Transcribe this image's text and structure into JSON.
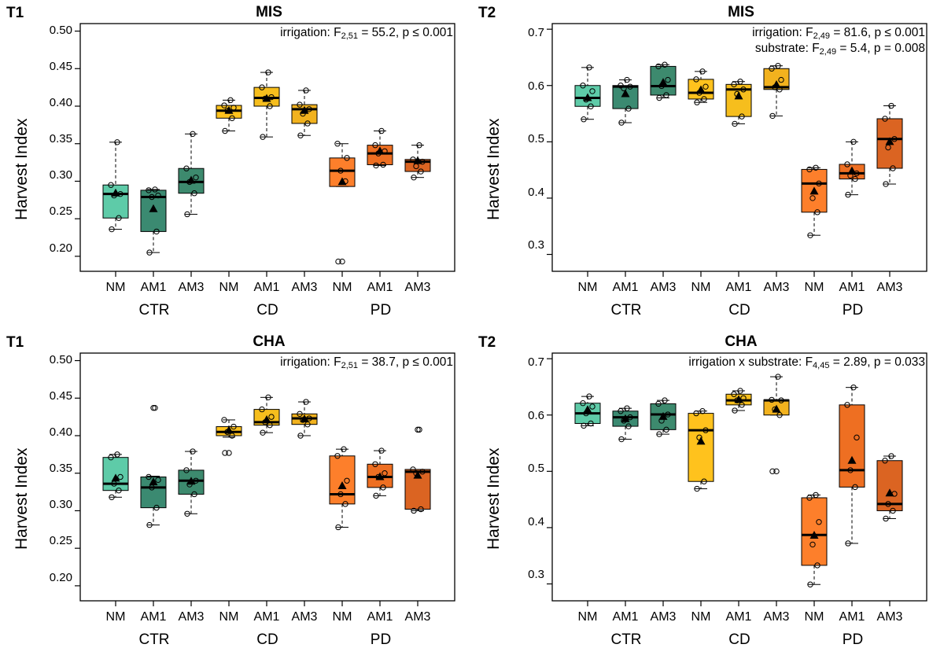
{
  "figure": {
    "ylabel": "Harvest Index",
    "categories": [
      "NM",
      "AM1",
      "AM3"
    ],
    "groups": [
      "CTR",
      "CD",
      "PD"
    ]
  },
  "colors": [
    "#5ecba8",
    "#3b8a71",
    "#3d8a6e",
    "#ffc21d",
    "#f6be1d",
    "#f2b21e",
    "#fd7f2b",
    "#ee6f22",
    "#db6422"
  ],
  "chart_data": [
    {
      "type": "box",
      "panel": "T1",
      "title": "MIS",
      "ylabel": "Harvest Index",
      "ylim": [
        0.18,
        0.51
      ],
      "yticks": [
        "0.20",
        "0.25",
        "0.30",
        "0.35",
        "0.40",
        "0.45",
        "0.50"
      ],
      "stats": [
        {
          "pre": "irrigation: F",
          "sub": "2,51",
          "post": " = 55.2, p ≤ 0.001"
        }
      ],
      "boxes": [
        {
          "group": "CTR",
          "cat": "NM",
          "wlo": 0.236,
          "q1": 0.251,
          "med": 0.283,
          "q3": 0.295,
          "whi": 0.352,
          "mean": 0.284,
          "out": [],
          "pts": [
            0.236,
            0.251,
            0.281,
            0.283,
            0.295,
            0.352
          ]
        },
        {
          "group": "CTR",
          "cat": "AM1",
          "wlo": 0.205,
          "q1": 0.233,
          "med": 0.279,
          "q3": 0.288,
          "whi": 0.289,
          "mean": 0.263,
          "out": [],
          "pts": [
            0.205,
            0.233,
            0.279,
            0.281,
            0.288,
            0.289
          ]
        },
        {
          "group": "CTR",
          "cat": "AM3",
          "wlo": 0.256,
          "q1": 0.284,
          "med": 0.299,
          "q3": 0.317,
          "whi": 0.363,
          "mean": 0.301,
          "out": [],
          "pts": [
            0.256,
            0.284,
            0.299,
            0.305,
            0.317,
            0.363
          ]
        },
        {
          "group": "CD",
          "cat": "NM",
          "wlo": 0.367,
          "q1": 0.384,
          "med": 0.394,
          "q3": 0.401,
          "whi": 0.408,
          "mean": 0.394,
          "out": [],
          "pts": [
            0.367,
            0.384,
            0.394,
            0.398,
            0.401,
            0.408
          ]
        },
        {
          "group": "CD",
          "cat": "AM1",
          "wlo": 0.359,
          "q1": 0.4,
          "med": 0.411,
          "q3": 0.425,
          "whi": 0.445,
          "mean": 0.41,
          "out": [],
          "pts": [
            0.359,
            0.4,
            0.41,
            0.412,
            0.425,
            0.445
          ]
        },
        {
          "group": "CD",
          "cat": "AM3",
          "wlo": 0.361,
          "q1": 0.377,
          "med": 0.396,
          "q3": 0.402,
          "whi": 0.421,
          "mean": 0.394,
          "out": [],
          "pts": [
            0.361,
            0.377,
            0.39,
            0.396,
            0.402,
            0.421
          ]
        },
        {
          "group": "PD",
          "cat": "NM",
          "wlo": 0.293,
          "q1": 0.293,
          "med": 0.314,
          "q3": 0.331,
          "whi": 0.35,
          "mean": 0.299,
          "out": [
            0.193
          ],
          "pts": [
            0.193,
            0.3,
            0.314,
            0.331,
            0.35
          ]
        },
        {
          "group": "PD",
          "cat": "AM1",
          "wlo": 0.321,
          "q1": 0.322,
          "med": 0.337,
          "q3": 0.348,
          "whi": 0.367,
          "mean": 0.34,
          "out": [],
          "pts": [
            0.321,
            0.322,
            0.337,
            0.34,
            0.348,
            0.367
          ]
        },
        {
          "group": "PD",
          "cat": "AM3",
          "wlo": 0.305,
          "q1": 0.313,
          "med": 0.326,
          "q3": 0.329,
          "whi": 0.348,
          "mean": 0.327,
          "out": [],
          "pts": [
            0.305,
            0.313,
            0.32,
            0.326,
            0.329,
            0.348
          ]
        }
      ]
    },
    {
      "type": "box",
      "panel": "T2",
      "title": "MIS",
      "ylabel": "Harvest Index",
      "ylim": [
        0.27,
        0.71
      ],
      "yticks": [
        "0.3",
        "0.4",
        "0.5",
        "0.6",
        "0.7"
      ],
      "stats": [
        {
          "pre": "irrigation: F",
          "sub": "2,49",
          "post": " = 81.6, p ≤ 0.001"
        },
        {
          "pre": "substrate: F",
          "sub": "2,49",
          "post": " = 5.4, p = 0.008"
        }
      ],
      "boxes": [
        {
          "group": "CTR",
          "cat": "NM",
          "wlo": 0.54,
          "q1": 0.563,
          "med": 0.578,
          "q3": 0.6,
          "whi": 0.632,
          "mean": 0.578,
          "out": [],
          "pts": [
            0.54,
            0.563,
            0.575,
            0.59,
            0.6,
            0.632
          ]
        },
        {
          "group": "CTR",
          "cat": "AM1",
          "wlo": 0.534,
          "q1": 0.559,
          "med": 0.598,
          "q3": 0.6,
          "whi": 0.61,
          "mean": 0.585,
          "out": [],
          "pts": [
            0.534,
            0.559,
            0.595,
            0.598,
            0.6,
            0.61
          ]
        },
        {
          "group": "CTR",
          "cat": "AM3",
          "wlo": 0.578,
          "q1": 0.583,
          "med": 0.599,
          "q3": 0.634,
          "whi": 0.637,
          "mean": 0.605,
          "out": [],
          "pts": [
            0.578,
            0.583,
            0.599,
            0.61,
            0.634,
            0.637
          ]
        },
        {
          "group": "CD",
          "cat": "NM",
          "wlo": 0.57,
          "q1": 0.576,
          "med": 0.587,
          "q3": 0.611,
          "whi": 0.625,
          "mean": 0.592,
          "out": [],
          "pts": [
            0.57,
            0.576,
            0.587,
            0.598,
            0.611,
            0.625
          ]
        },
        {
          "group": "CD",
          "cat": "AM1",
          "wlo": 0.532,
          "q1": 0.545,
          "med": 0.593,
          "q3": 0.602,
          "whi": 0.607,
          "mean": 0.581,
          "out": [],
          "pts": [
            0.532,
            0.545,
            0.585,
            0.593,
            0.602,
            0.607
          ]
        },
        {
          "group": "CD",
          "cat": "AM3",
          "wlo": 0.546,
          "q1": 0.593,
          "med": 0.597,
          "q3": 0.63,
          "whi": 0.635,
          "mean": 0.601,
          "out": [],
          "pts": [
            0.546,
            0.593,
            0.597,
            0.61,
            0.63,
            0.635
          ]
        },
        {
          "group": "PD",
          "cat": "NM",
          "wlo": 0.334,
          "q1": 0.375,
          "med": 0.426,
          "q3": 0.451,
          "whi": 0.454,
          "mean": 0.412,
          "out": [],
          "pts": [
            0.334,
            0.375,
            0.4,
            0.426,
            0.451,
            0.454
          ]
        },
        {
          "group": "PD",
          "cat": "AM1",
          "wlo": 0.406,
          "q1": 0.434,
          "med": 0.444,
          "q3": 0.46,
          "whi": 0.5,
          "mean": 0.448,
          "out": [],
          "pts": [
            0.406,
            0.434,
            0.44,
            0.444,
            0.46,
            0.5
          ]
        },
        {
          "group": "PD",
          "cat": "AM3",
          "wlo": 0.425,
          "q1": 0.453,
          "med": 0.505,
          "q3": 0.541,
          "whi": 0.564,
          "mean": 0.5,
          "out": [],
          "pts": [
            0.425,
            0.453,
            0.49,
            0.505,
            0.541,
            0.564
          ]
        }
      ]
    },
    {
      "type": "box",
      "panel": "T1",
      "title": "CHA",
      "ylabel": "Harvest Index",
      "ylim": [
        0.18,
        0.51
      ],
      "yticks": [
        "0.20",
        "0.25",
        "0.30",
        "0.35",
        "0.40",
        "0.45",
        "0.50"
      ],
      "stats": [
        {
          "pre": "irrigation: F",
          "sub": "2,51",
          "post": " = 38.7, p ≤ 0.001"
        }
      ],
      "boxes": [
        {
          "group": "CTR",
          "cat": "NM",
          "wlo": 0.318,
          "q1": 0.327,
          "med": 0.336,
          "q3": 0.371,
          "whi": 0.375,
          "mean": 0.343,
          "out": [],
          "pts": [
            0.318,
            0.327,
            0.336,
            0.345,
            0.371,
            0.375
          ]
        },
        {
          "group": "CTR",
          "cat": "AM1",
          "wlo": 0.281,
          "q1": 0.304,
          "med": 0.331,
          "q3": 0.345,
          "whi": 0.346,
          "mean": 0.338,
          "out": [
            0.437
          ],
          "pts": [
            0.281,
            0.304,
            0.331,
            0.341,
            0.345,
            0.437
          ]
        },
        {
          "group": "CTR",
          "cat": "AM3",
          "wlo": 0.296,
          "q1": 0.322,
          "med": 0.34,
          "q3": 0.354,
          "whi": 0.379,
          "mean": 0.339,
          "out": [],
          "pts": [
            0.296,
            0.322,
            0.335,
            0.34,
            0.354,
            0.379
          ]
        },
        {
          "group": "CD",
          "cat": "NM",
          "wlo": 0.398,
          "q1": 0.4,
          "med": 0.405,
          "q3": 0.412,
          "whi": 0.421,
          "mean": 0.407,
          "out": [
            0.377
          ],
          "pts": [
            0.377,
            0.4,
            0.405,
            0.412,
            0.421
          ]
        },
        {
          "group": "CD",
          "cat": "AM1",
          "wlo": 0.404,
          "q1": 0.414,
          "med": 0.418,
          "q3": 0.435,
          "whi": 0.451,
          "mean": 0.421,
          "out": [],
          "pts": [
            0.404,
            0.414,
            0.418,
            0.425,
            0.435,
            0.451
          ]
        },
        {
          "group": "CD",
          "cat": "AM3",
          "wlo": 0.4,
          "q1": 0.415,
          "med": 0.423,
          "q3": 0.429,
          "whi": 0.445,
          "mean": 0.422,
          "out": [],
          "pts": [
            0.4,
            0.415,
            0.421,
            0.423,
            0.429,
            0.445
          ]
        },
        {
          "group": "PD",
          "cat": "NM",
          "wlo": 0.278,
          "q1": 0.309,
          "med": 0.322,
          "q3": 0.373,
          "whi": 0.382,
          "mean": 0.333,
          "out": [],
          "pts": [
            0.278,
            0.309,
            0.322,
            0.34,
            0.373,
            0.382
          ]
        },
        {
          "group": "PD",
          "cat": "AM1",
          "wlo": 0.32,
          "q1": 0.331,
          "med": 0.345,
          "q3": 0.362,
          "whi": 0.38,
          "mean": 0.345,
          "out": [],
          "pts": [
            0.32,
            0.331,
            0.345,
            0.35,
            0.362,
            0.38
          ]
        },
        {
          "group": "PD",
          "cat": "AM3",
          "wlo": 0.3,
          "q1": 0.302,
          "med": 0.352,
          "q3": 0.355,
          "whi": 0.355,
          "mean": 0.347,
          "out": [
            0.408
          ],
          "pts": [
            0.3,
            0.302,
            0.35,
            0.352,
            0.355,
            0.408
          ]
        }
      ]
    },
    {
      "type": "box",
      "panel": "T2",
      "title": "CHA",
      "ylabel": "Harvest Index",
      "ylim": [
        0.27,
        0.71
      ],
      "yticks": [
        "0.3",
        "0.4",
        "0.5",
        "0.6",
        "0.7"
      ],
      "stats": [
        {
          "pre": "irrigation x substrate: F",
          "sub": "4,45",
          "post": " = 2.89, p = 0.033"
        }
      ],
      "boxes": [
        {
          "group": "CTR",
          "cat": "NM",
          "wlo": 0.581,
          "q1": 0.585,
          "med": 0.603,
          "q3": 0.621,
          "whi": 0.633,
          "mean": 0.609,
          "out": [],
          "pts": [
            0.581,
            0.585,
            0.603,
            0.615,
            0.621,
            0.633
          ]
        },
        {
          "group": "CTR",
          "cat": "AM1",
          "wlo": 0.557,
          "q1": 0.58,
          "med": 0.596,
          "q3": 0.607,
          "whi": 0.612,
          "mean": 0.593,
          "out": [],
          "pts": [
            0.557,
            0.58,
            0.59,
            0.596,
            0.607,
            0.612
          ]
        },
        {
          "group": "CTR",
          "cat": "AM3",
          "wlo": 0.566,
          "q1": 0.574,
          "med": 0.601,
          "q3": 0.62,
          "whi": 0.626,
          "mean": 0.597,
          "out": [],
          "pts": [
            0.566,
            0.574,
            0.59,
            0.601,
            0.62,
            0.626
          ]
        },
        {
          "group": "CD",
          "cat": "NM",
          "wlo": 0.469,
          "q1": 0.482,
          "med": 0.573,
          "q3": 0.603,
          "whi": 0.607,
          "mean": 0.553,
          "out": [],
          "pts": [
            0.469,
            0.482,
            0.56,
            0.573,
            0.603,
            0.607
          ]
        },
        {
          "group": "CD",
          "cat": "AM1",
          "wlo": 0.608,
          "q1": 0.618,
          "med": 0.626,
          "q3": 0.637,
          "whi": 0.643,
          "mean": 0.627,
          "out": [],
          "pts": [
            0.608,
            0.618,
            0.626,
            0.63,
            0.637,
            0.643
          ]
        },
        {
          "group": "CD",
          "cat": "AM3",
          "wlo": 0.6,
          "q1": 0.6,
          "med": 0.626,
          "q3": 0.627,
          "whi": 0.668,
          "mean": 0.61,
          "out": [
            0.5
          ],
          "pts": [
            0.5,
            0.6,
            0.61,
            0.626,
            0.627,
            0.668
          ]
        },
        {
          "group": "PD",
          "cat": "NM",
          "wlo": 0.299,
          "q1": 0.333,
          "med": 0.387,
          "q3": 0.453,
          "whi": 0.458,
          "mean": 0.386,
          "out": [],
          "pts": [
            0.299,
            0.333,
            0.37,
            0.41,
            0.453,
            0.458
          ]
        },
        {
          "group": "PD",
          "cat": "AM1",
          "wlo": 0.372,
          "q1": 0.472,
          "med": 0.502,
          "q3": 0.618,
          "whi": 0.649,
          "mean": 0.519,
          "out": [],
          "pts": [
            0.372,
            0.472,
            0.502,
            0.56,
            0.618,
            0.649
          ]
        },
        {
          "group": "PD",
          "cat": "AM3",
          "wlo": 0.416,
          "q1": 0.43,
          "med": 0.442,
          "q3": 0.519,
          "whi": 0.527,
          "mean": 0.461,
          "out": [],
          "pts": [
            0.416,
            0.43,
            0.442,
            0.46,
            0.519,
            0.527
          ]
        }
      ]
    }
  ]
}
